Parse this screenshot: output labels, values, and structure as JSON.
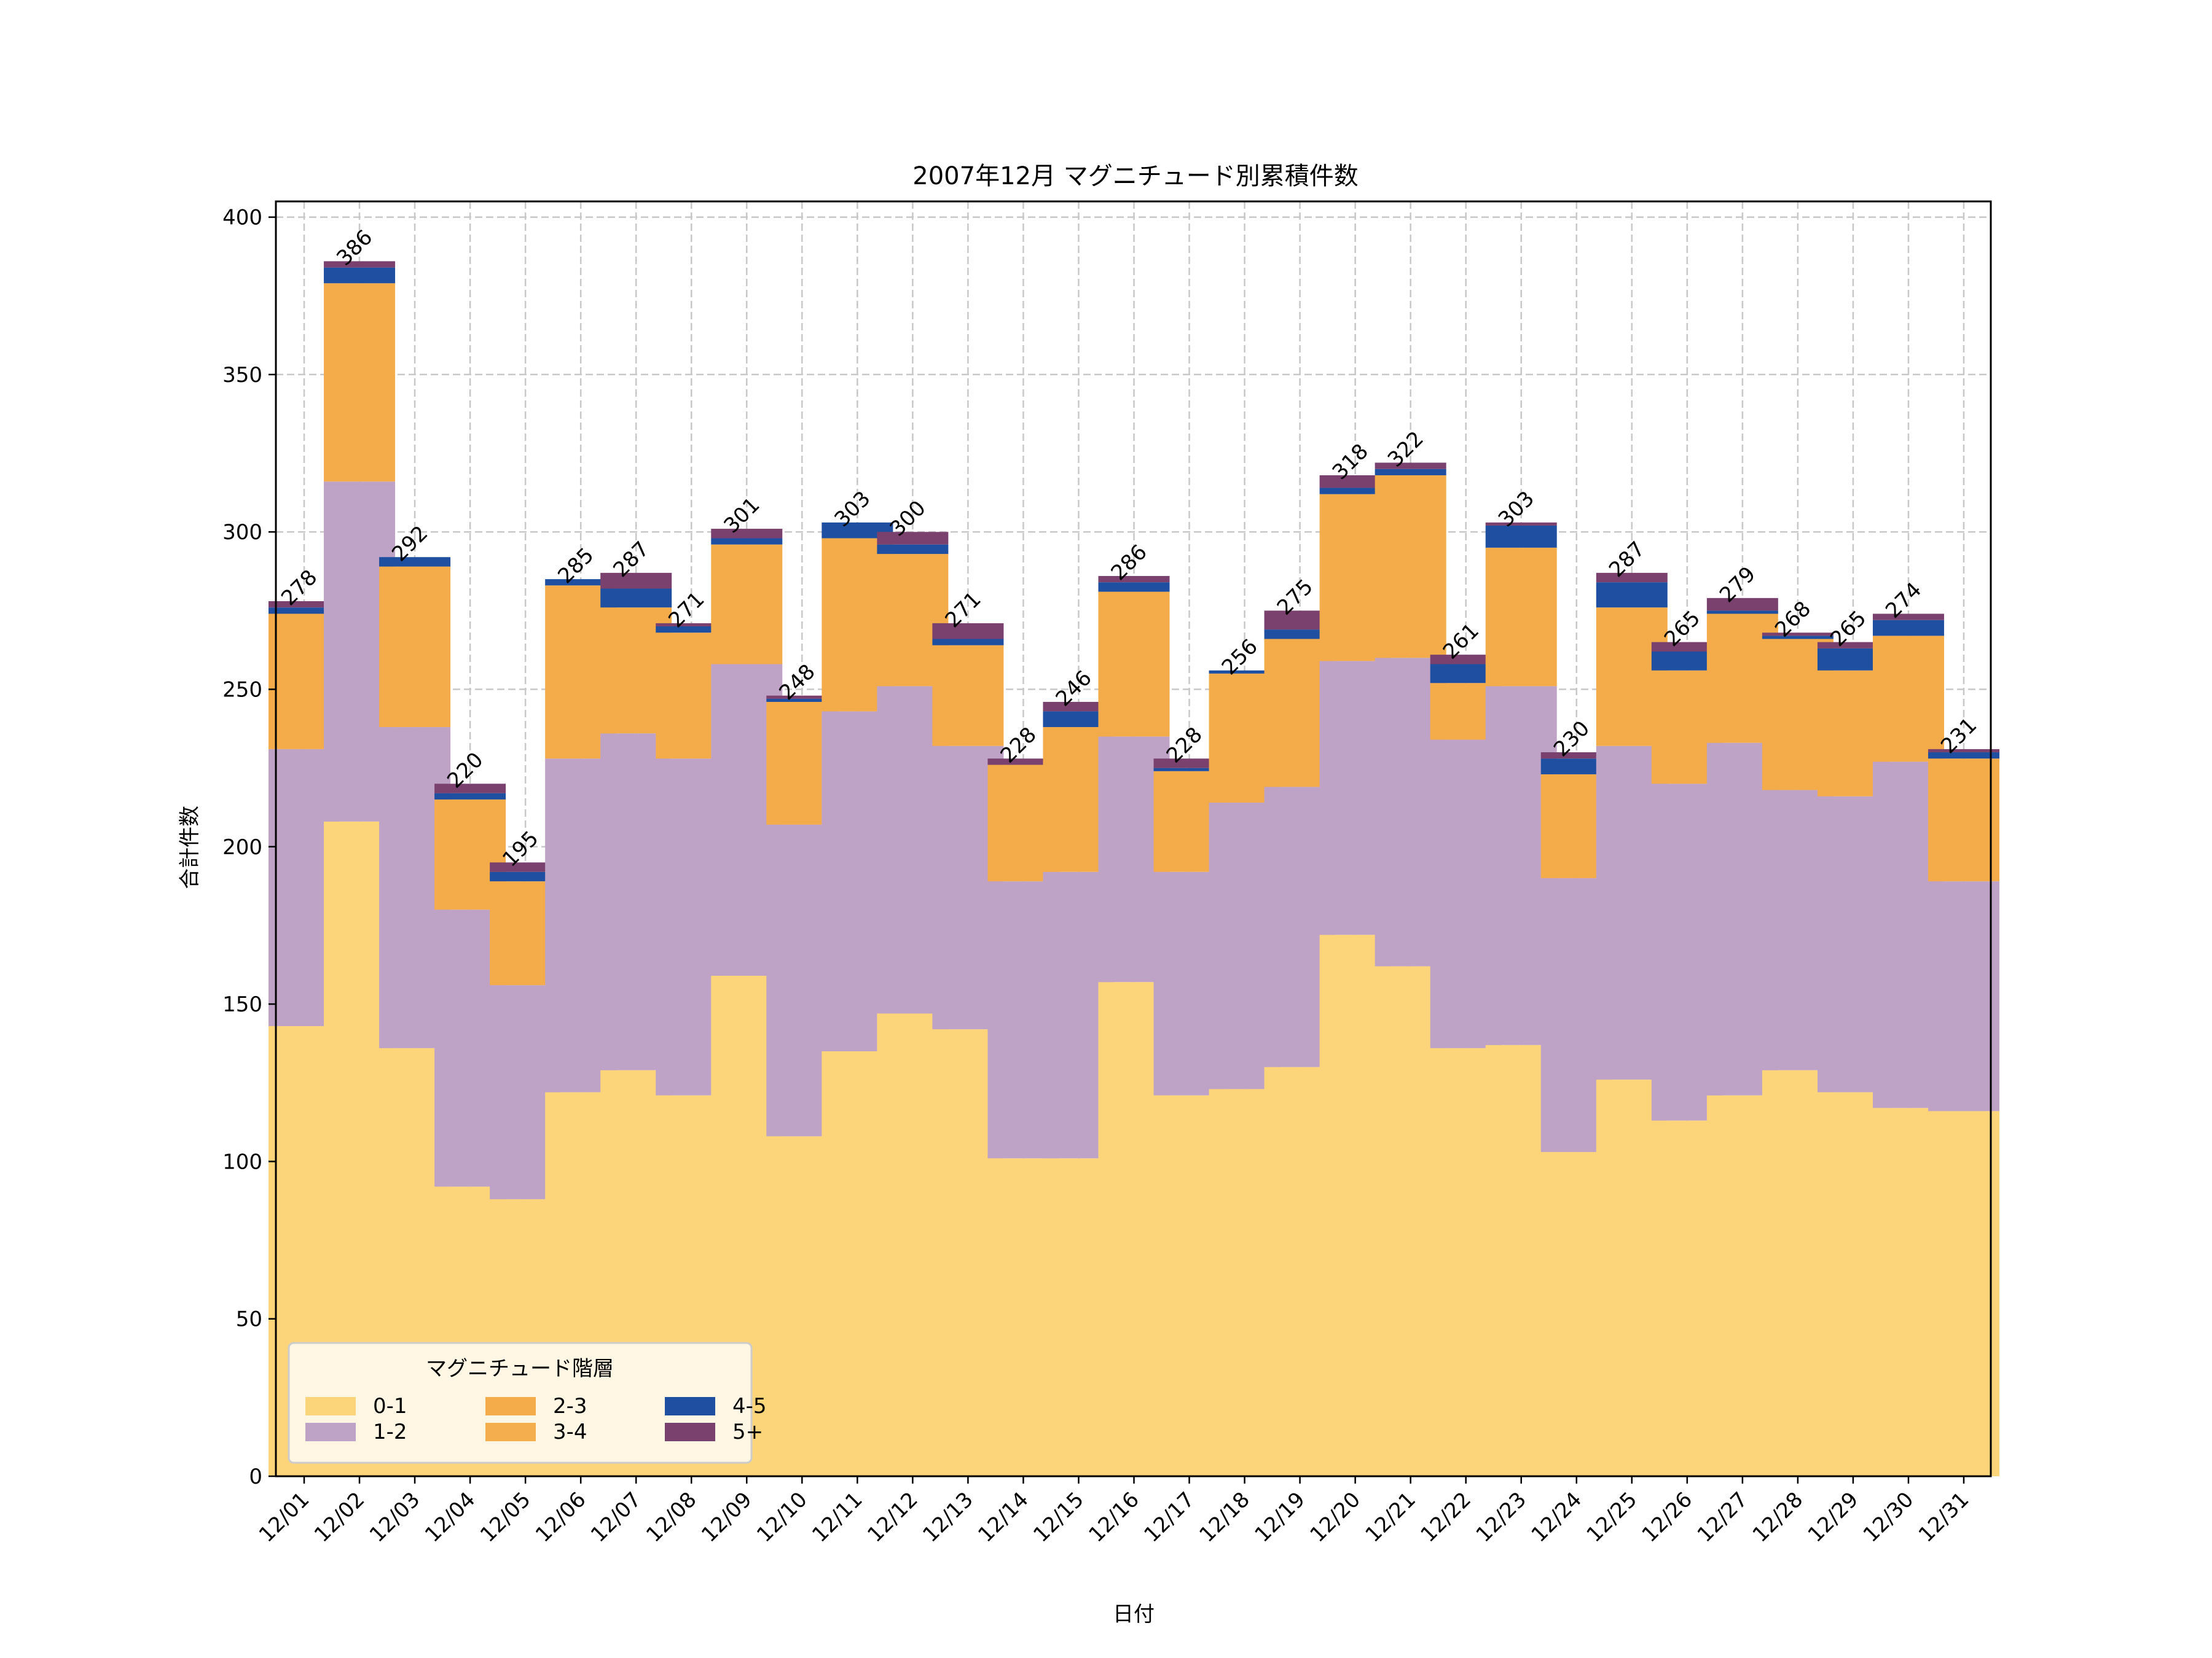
{
  "chart_data": {
    "type": "bar",
    "stacked": true,
    "title": "2007年12月 マグニチュード別累積件数",
    "xlabel": "日付",
    "ylabel": "合計件数",
    "ylim": [
      0,
      405
    ],
    "yticks": [
      0,
      50,
      100,
      150,
      200,
      250,
      300,
      350,
      400
    ],
    "grid": true,
    "legend": {
      "title": "マグニチュード階層",
      "placement": "lower-left",
      "columns": 3
    },
    "categories": [
      "12/01",
      "12/02",
      "12/03",
      "12/04",
      "12/05",
      "12/06",
      "12/07",
      "12/08",
      "12/09",
      "12/10",
      "12/11",
      "12/12",
      "12/13",
      "12/14",
      "12/15",
      "12/16",
      "12/17",
      "12/18",
      "12/19",
      "12/20",
      "12/21",
      "12/22",
      "12/23",
      "12/24",
      "12/25",
      "12/26",
      "12/27",
      "12/28",
      "12/29",
      "12/30",
      "12/31"
    ],
    "series": [
      {
        "name": "0-1",
        "color": "#FCD57A",
        "values": [
          143,
          208,
          136,
          92,
          88,
          122,
          129,
          121,
          159,
          108,
          135,
          147,
          142,
          101,
          101,
          157,
          121,
          123,
          130,
          172,
          162,
          136,
          137,
          103,
          126,
          113,
          121,
          129,
          122,
          117,
          116
        ]
      },
      {
        "name": "1-2",
        "color": "#BFA3C7",
        "values": [
          88,
          108,
          102,
          88,
          68,
          106,
          107,
          107,
          99,
          99,
          108,
          104,
          90,
          88,
          91,
          78,
          71,
          91,
          89,
          87,
          98,
          98,
          114,
          87,
          106,
          107,
          112,
          89,
          94,
          110,
          73
        ]
      },
      {
        "name": "2-3",
        "color": "#F4AC4B",
        "values": [
          43,
          63,
          51,
          35,
          33,
          55,
          40,
          40,
          38,
          39,
          55,
          42,
          32,
          37,
          46,
          46,
          32,
          41,
          47,
          53,
          58,
          18,
          44,
          33,
          44,
          36,
          41,
          48,
          40,
          40,
          39
        ]
      },
      {
        "name": "3-4",
        "color": "#F5AE4E",
        "values": [
          0,
          0,
          0,
          0,
          0,
          0,
          0,
          0,
          0,
          0,
          0,
          0,
          0,
          0,
          0,
          0,
          0,
          0,
          0,
          0,
          0,
          0,
          0,
          0,
          0,
          0,
          0,
          0,
          0,
          0,
          0
        ]
      },
      {
        "name": "4-5",
        "color": "#1F4FA0",
        "values": [
          2,
          5,
          3,
          2,
          3,
          2,
          6,
          2,
          2,
          1,
          5,
          3,
          2,
          0,
          5,
          3,
          1,
          1,
          3,
          2,
          2,
          6,
          7,
          5,
          8,
          6,
          1,
          1,
          7,
          5,
          2
        ]
      },
      {
        "name": "5+",
        "color": "#7A416F",
        "values": [
          2,
          2,
          0,
          3,
          3,
          0,
          5,
          1,
          3,
          1,
          0,
          4,
          5,
          2,
          3,
          2,
          3,
          0,
          6,
          4,
          2,
          3,
          1,
          2,
          3,
          3,
          4,
          1,
          2,
          2,
          1
        ]
      }
    ],
    "totals": [
      278,
      386,
      292,
      220,
      195,
      285,
      287,
      271,
      301,
      248,
      303,
      300,
      271,
      228,
      246,
      286,
      228,
      256,
      275,
      318,
      322,
      261,
      303,
      230,
      287,
      265,
      279,
      268,
      265,
      274,
      231
    ]
  }
}
